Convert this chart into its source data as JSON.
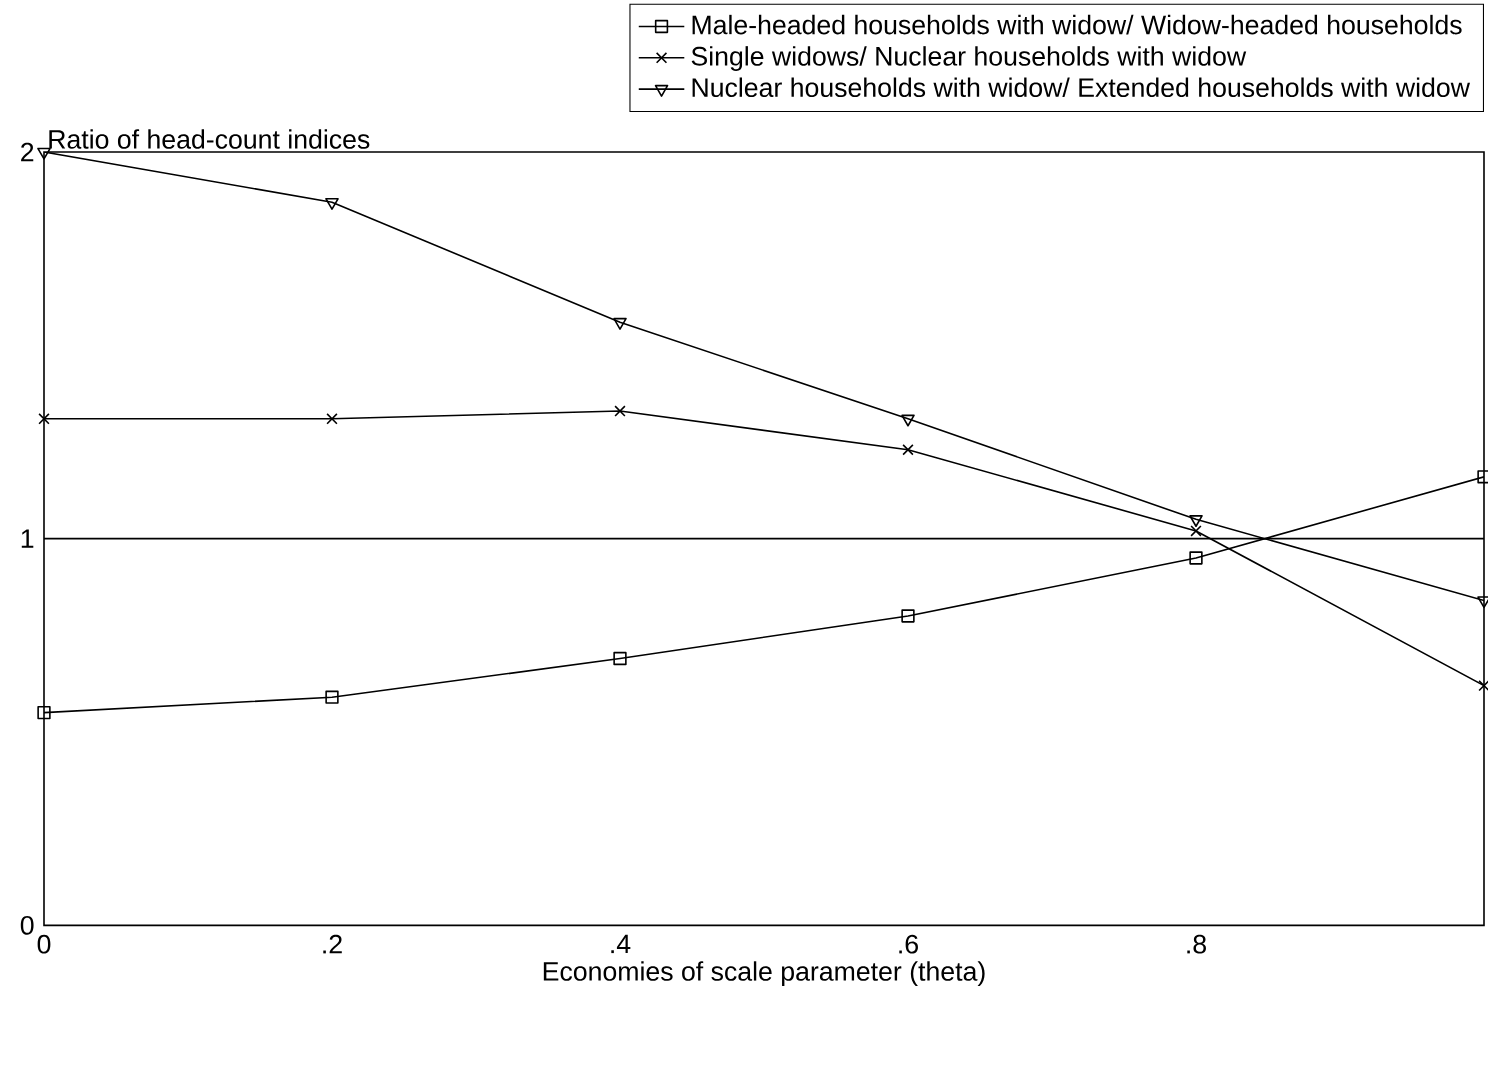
{
  "chart_data": {
    "type": "line",
    "xlabel": "Economies of scale parameter (theta)",
    "ylabel": "Ratio of head-count indices",
    "x": [
      0,
      0.2,
      0.4,
      0.6,
      0.8,
      1
    ],
    "series": [
      {
        "name": "Male-headed households with widow/ Widow-headed households",
        "color": "#000000",
        "marker": "square",
        "values": [
          0.55,
          0.59,
          0.69,
          0.8,
          0.95,
          1.16
        ]
      },
      {
        "name": "Single widows/ Nuclear households with widow",
        "color": "#000000",
        "marker": "cross",
        "values": [
          1.31,
          1.31,
          1.33,
          1.23,
          1.02,
          0.62
        ]
      },
      {
        "name": "Nuclear households with widow/ Extended households with widow",
        "color": "#000000",
        "marker": "triangle",
        "values": [
          2.0,
          1.87,
          1.56,
          1.31,
          1.05,
          0.84
        ]
      }
    ],
    "xlim": [
      0,
      1
    ],
    "ylim": [
      0,
      2
    ],
    "xticks": [
      0,
      {
        "value": 0.2,
        "label": ".2"
      },
      {
        "value": 0.4,
        "label": ".4"
      },
      {
        "value": 0.6,
        "label": ".6"
      },
      {
        "value": 0.8,
        "label": ".8"
      }
    ],
    "yticks": [
      0,
      1,
      2
    ],
    "ref_lines": [
      {
        "axis": "y",
        "value": 1
      }
    ],
    "grid": false,
    "legend": "top",
    "line_style": "solid"
  }
}
